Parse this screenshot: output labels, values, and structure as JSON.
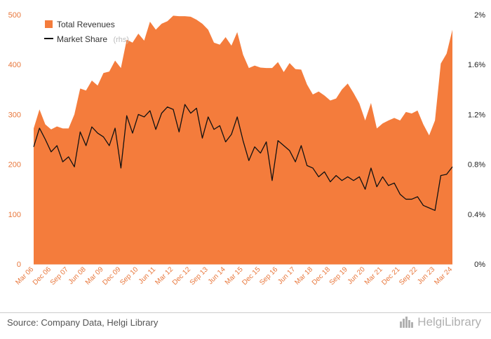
{
  "chart_data": {
    "type": "area",
    "legend": {
      "position": "top-left"
    },
    "grid": false,
    "x": [
      "Mar 06",
      "Jun 06",
      "Sep 06",
      "Dec 06",
      "Mar 07",
      "Jun 07",
      "Sep 07",
      "Dec 07",
      "Mar 08",
      "Jun 08",
      "Sep 08",
      "Dec 08",
      "Mar 09",
      "Jun 09",
      "Sep 09",
      "Dec 09",
      "Mar 10",
      "Jun 10",
      "Sep 10",
      "Dec 10",
      "Mar 11",
      "Jun 11",
      "Sep 11",
      "Dec 11",
      "Mar 12",
      "Jun 12",
      "Sep 12",
      "Dec 12",
      "Mar 13",
      "Jun 13",
      "Sep 13",
      "Dec 13",
      "Mar 14",
      "Jun 14",
      "Sep 14",
      "Dec 14",
      "Mar 15",
      "Jun 15",
      "Sep 15",
      "Dec 15",
      "Mar 16",
      "Jun 16",
      "Sep 16",
      "Dec 16",
      "Mar 17",
      "Jun 17",
      "Sep 17",
      "Dec 17",
      "Mar 18",
      "Jun 18",
      "Sep 18",
      "Dec 18",
      "Mar 19",
      "Jun 19",
      "Sep 19",
      "Dec 19",
      "Mar 20",
      "Jun 20",
      "Sep 20",
      "Dec 20",
      "Mar 21",
      "Jun 21",
      "Sep 21",
      "Dec 21",
      "Mar 22",
      "Jun 22",
      "Sep 22",
      "Dec 22",
      "Mar 23",
      "Jun 23",
      "Sep 23",
      "Dec 23",
      "Mar 24"
    ],
    "x_tick_labels": [
      "Mar 06",
      "Dec 06",
      "Sep 07",
      "Jun 08",
      "Mar 09",
      "Dec 09",
      "Sep 10",
      "Jun 11",
      "Mar 12",
      "Dec 12",
      "Sep 13",
      "Jun 14",
      "Mar 15",
      "Dec 15",
      "Sep 16",
      "Jun 17",
      "Mar 18",
      "Dec 18",
      "Sep 19",
      "Jun 20",
      "Mar 21",
      "Dec 21",
      "Sep 22",
      "Jun 23",
      "Mar 24"
    ],
    "y_left": {
      "ticks": [
        "0",
        "100",
        "200",
        "300",
        "400",
        "500"
      ],
      "range": [
        0,
        500
      ]
    },
    "y_right": {
      "ticks": [
        "0%",
        "0.4%",
        "0.8%",
        "1.2%",
        "1.6%",
        "2%"
      ],
      "range": [
        0,
        2
      ]
    },
    "series": [
      {
        "name": "Total Revenues",
        "type": "area",
        "axis": "left",
        "color": "#f47c3c",
        "values": [
          272,
          310,
          280,
          270,
          276,
          272,
          272,
          300,
          352,
          348,
          368,
          358,
          383,
          386,
          408,
          393,
          450,
          444,
          462,
          448,
          486,
          470,
          482,
          487,
          498,
          497,
          497,
          496,
          490,
          482,
          470,
          444,
          440,
          455,
          438,
          465,
          420,
          393,
          398,
          394,
          393,
          393,
          405,
          385,
          403,
          391,
          390,
          360,
          340,
          346,
          338,
          328,
          332,
          350,
          362,
          343,
          322,
          288,
          323,
          272,
          282,
          288,
          293,
          288,
          305,
          302,
          308,
          280,
          258,
          288,
          402,
          422,
          470
        ]
      },
      {
        "name": "Market Share",
        "note": "(rhs)",
        "type": "line",
        "axis": "right",
        "color": "#111111",
        "values": [
          0.94,
          1.09,
          1.0,
          0.9,
          0.95,
          0.82,
          0.86,
          0.78,
          1.06,
          0.95,
          1.1,
          1.05,
          1.02,
          0.95,
          1.09,
          0.77,
          1.19,
          1.05,
          1.2,
          1.18,
          1.23,
          1.08,
          1.21,
          1.26,
          1.24,
          1.06,
          1.28,
          1.21,
          1.25,
          1.01,
          1.18,
          1.08,
          1.11,
          0.98,
          1.04,
          1.18,
          0.99,
          0.83,
          0.94,
          0.89,
          0.98,
          0.67,
          0.99,
          0.95,
          0.91,
          0.82,
          0.95,
          0.79,
          0.77,
          0.7,
          0.74,
          0.66,
          0.71,
          0.67,
          0.7,
          0.67,
          0.7,
          0.6,
          0.77,
          0.62,
          0.7,
          0.63,
          0.65,
          0.56,
          0.52,
          0.52,
          0.54,
          0.47,
          0.45,
          0.43,
          0.71,
          0.72,
          0.78
        ]
      }
    ]
  },
  "footer": {
    "source": "Source: Company Data, Helgi Library",
    "brand": "HelgiLibrary"
  }
}
